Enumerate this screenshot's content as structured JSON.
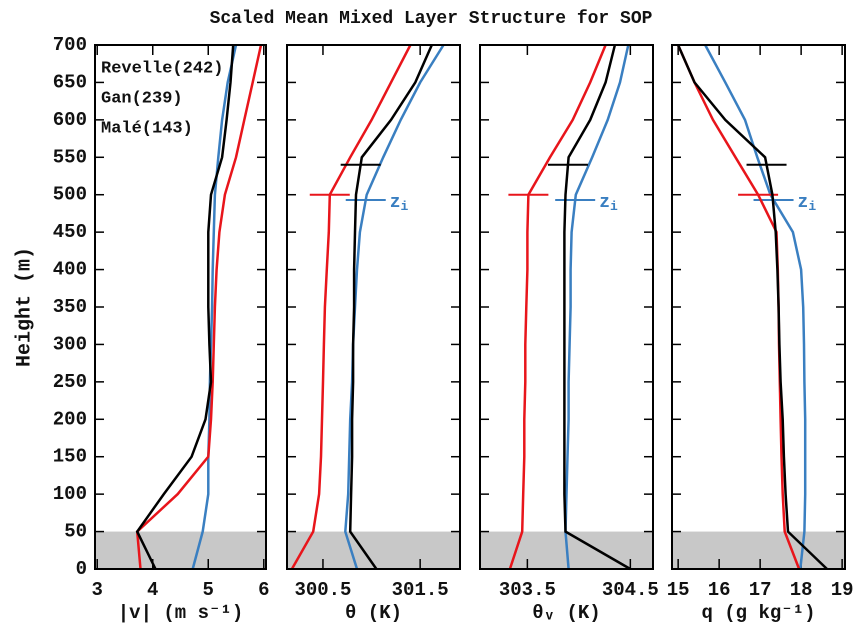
{
  "chart_data": [
    {
      "type": "line",
      "title": "Scaled Mean Mixed Layer Structure for SOP",
      "ylabel": "Height (m)",
      "xlabel": "|v| (m s⁻¹)",
      "legend": "upper left",
      "ylim": [
        0,
        700
      ],
      "yticks": [
        0,
        50,
        100,
        150,
        200,
        250,
        300,
        350,
        400,
        450,
        500,
        550,
        600,
        650,
        700
      ],
      "shaded_band": [
        0,
        50
      ],
      "xlim": [
        2.96,
        6.04
      ],
      "xticks": [
        3,
        4,
        5,
        6
      ],
      "y": [
        0,
        50,
        100,
        150,
        200,
        250,
        300,
        350,
        400,
        450,
        500,
        550,
        600,
        650,
        700
      ],
      "series": [
        {
          "name": "Revelle(242)",
          "color": "#3a7fc1",
          "values": [
            4.72,
            4.9,
            5.0,
            5.0,
            5.02,
            5.03,
            5.05,
            5.07,
            5.08,
            5.1,
            5.12,
            5.18,
            5.25,
            5.35,
            5.5
          ]
        },
        {
          "name": "Gan(239)",
          "color": "#e8151b",
          "values": [
            3.78,
            3.72,
            4.45,
            5.0,
            5.05,
            5.08,
            5.1,
            5.12,
            5.15,
            5.2,
            5.3,
            5.5,
            5.65,
            5.8,
            5.95
          ]
        },
        {
          "name": "Malé(143)",
          "color": "#000000",
          "values": [
            4.05,
            3.72,
            4.2,
            4.7,
            4.95,
            5.05,
            5.02,
            5.0,
            5.0,
            5.0,
            5.05,
            5.25,
            5.33,
            5.4,
            5.45
          ]
        }
      ]
    },
    {
      "type": "line",
      "xlabel": "θ (K)",
      "xlim": [
        300.13,
        301.91
      ],
      "xticks": [
        300.5,
        301.5
      ],
      "annotation": {
        "text": "z",
        "sub": "i"
      },
      "y": [
        0,
        50,
        100,
        150,
        200,
        250,
        300,
        350,
        400,
        450,
        500,
        550,
        600,
        650,
        700
      ],
      "series": [
        {
          "color": "#3a7fc1",
          "zi": 493,
          "values": [
            300.85,
            300.73,
            300.76,
            300.77,
            300.78,
            300.8,
            300.81,
            300.83,
            300.85,
            300.88,
            300.95,
            301.12,
            301.3,
            301.5,
            301.74
          ]
        },
        {
          "color": "#e8151b",
          "zi": 500,
          "values": [
            300.18,
            300.4,
            300.46,
            300.48,
            300.49,
            300.5,
            300.51,
            300.52,
            300.54,
            300.56,
            300.57,
            300.78,
            301.0,
            301.2,
            301.4
          ]
        },
        {
          "color": "#000000",
          "zi": 540,
          "values": [
            301.05,
            300.78,
            300.79,
            300.8,
            300.8,
            300.81,
            300.81,
            300.82,
            300.82,
            300.83,
            300.84,
            300.9,
            301.2,
            301.45,
            301.62
          ]
        }
      ]
    },
    {
      "type": "line",
      "xlabel": "θᵥ (K)",
      "xlim": [
        303.04,
        304.72
      ],
      "xticks": [
        303.5,
        304.5
      ],
      "annotation": {
        "text": "z",
        "sub": "i"
      },
      "y": [
        0,
        50,
        100,
        150,
        200,
        250,
        300,
        350,
        400,
        450,
        500,
        550,
        600,
        650,
        700
      ],
      "series": [
        {
          "color": "#3a7fc1",
          "zi": 493,
          "values": [
            303.9,
            303.87,
            303.88,
            303.89,
            303.9,
            303.9,
            303.91,
            303.92,
            303.92,
            303.93,
            303.97,
            304.13,
            304.28,
            304.4,
            304.48
          ]
        },
        {
          "color": "#e8151b",
          "zi": 500,
          "values": [
            303.33,
            303.45,
            303.46,
            303.47,
            303.47,
            303.48,
            303.48,
            303.49,
            303.5,
            303.5,
            303.51,
            303.72,
            303.94,
            304.11,
            304.26
          ]
        },
        {
          "color": "#000000",
          "zi": 540,
          "values": [
            304.5,
            303.87,
            303.86,
            303.86,
            303.86,
            303.86,
            303.86,
            303.86,
            303.86,
            303.86,
            303.87,
            303.9,
            304.11,
            304.26,
            304.35
          ]
        }
      ]
    },
    {
      "type": "line",
      "xlabel": "q (g kg⁻¹)",
      "xlim": [
        14.85,
        19.07
      ],
      "xticks": [
        15,
        16,
        17,
        18,
        19
      ],
      "annotation": {
        "text": "z",
        "sub": "i"
      },
      "y": [
        0,
        50,
        100,
        150,
        200,
        250,
        300,
        350,
        400,
        450,
        500,
        550,
        600,
        650,
        700
      ],
      "series": [
        {
          "color": "#3a7fc1",
          "zi": 493,
          "values": [
            17.98,
            18.08,
            18.1,
            18.1,
            18.1,
            18.08,
            18.07,
            18.05,
            18.0,
            17.8,
            17.25,
            16.93,
            16.63,
            16.15,
            15.66
          ]
        },
        {
          "color": "#e8151b",
          "zi": 500,
          "values": [
            17.95,
            17.6,
            17.55,
            17.52,
            17.5,
            17.48,
            17.46,
            17.45,
            17.43,
            17.4,
            16.95,
            16.4,
            15.85,
            15.4,
            15.0
          ]
        },
        {
          "color": "#000000",
          "zi": 540,
          "values": [
            18.63,
            17.68,
            17.62,
            17.58,
            17.55,
            17.5,
            17.47,
            17.45,
            17.42,
            17.38,
            17.3,
            17.12,
            16.15,
            15.4,
            15.0
          ]
        }
      ]
    }
  ]
}
